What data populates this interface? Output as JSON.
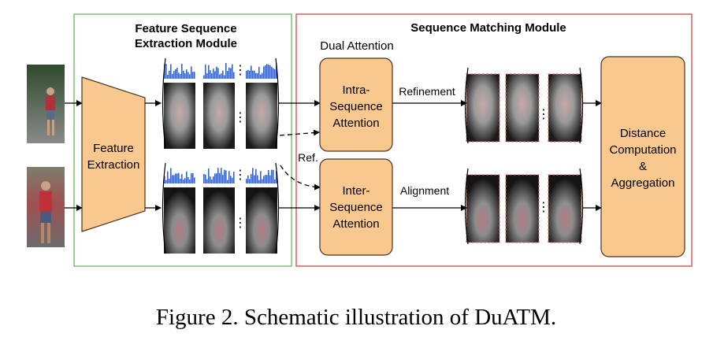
{
  "colors": {
    "green_border": "#7cc36a",
    "red_border": "#e35a5a",
    "orange_fill": "#f8c88e",
    "orange_stroke": "#4a3320",
    "bar_blue": "#3a63c4",
    "dashed_red": "#e56060"
  },
  "modules": {
    "extraction_title_line1": "Feature Sequence",
    "extraction_title_line2": "Extraction Module",
    "matching_title": "Sequence Matching Module",
    "dual_attention": "Dual Attention"
  },
  "boxes": {
    "feature_extraction_line1": "Feature",
    "feature_extraction_line2": "Extraction",
    "intra_line1": "Intra-",
    "intra_line2": "Sequence",
    "intra_line3": "Attention",
    "inter_line1": "Inter-",
    "inter_line2": "Sequence",
    "inter_line3": "Attention",
    "distance_line1": "Distance",
    "distance_line2": "Computation",
    "distance_line3": "&",
    "distance_line4": "Aggregation"
  },
  "labels": {
    "refinement": "Refinement",
    "alignment": "Alignment",
    "ref": "Ref."
  },
  "dots": "⋮",
  "caption": "Figure 2. Schematic illustration of DuATM.",
  "icons": [
    "person-photo-icon",
    "feature-map-icon",
    "histogram-icon",
    "arrow-icon"
  ]
}
